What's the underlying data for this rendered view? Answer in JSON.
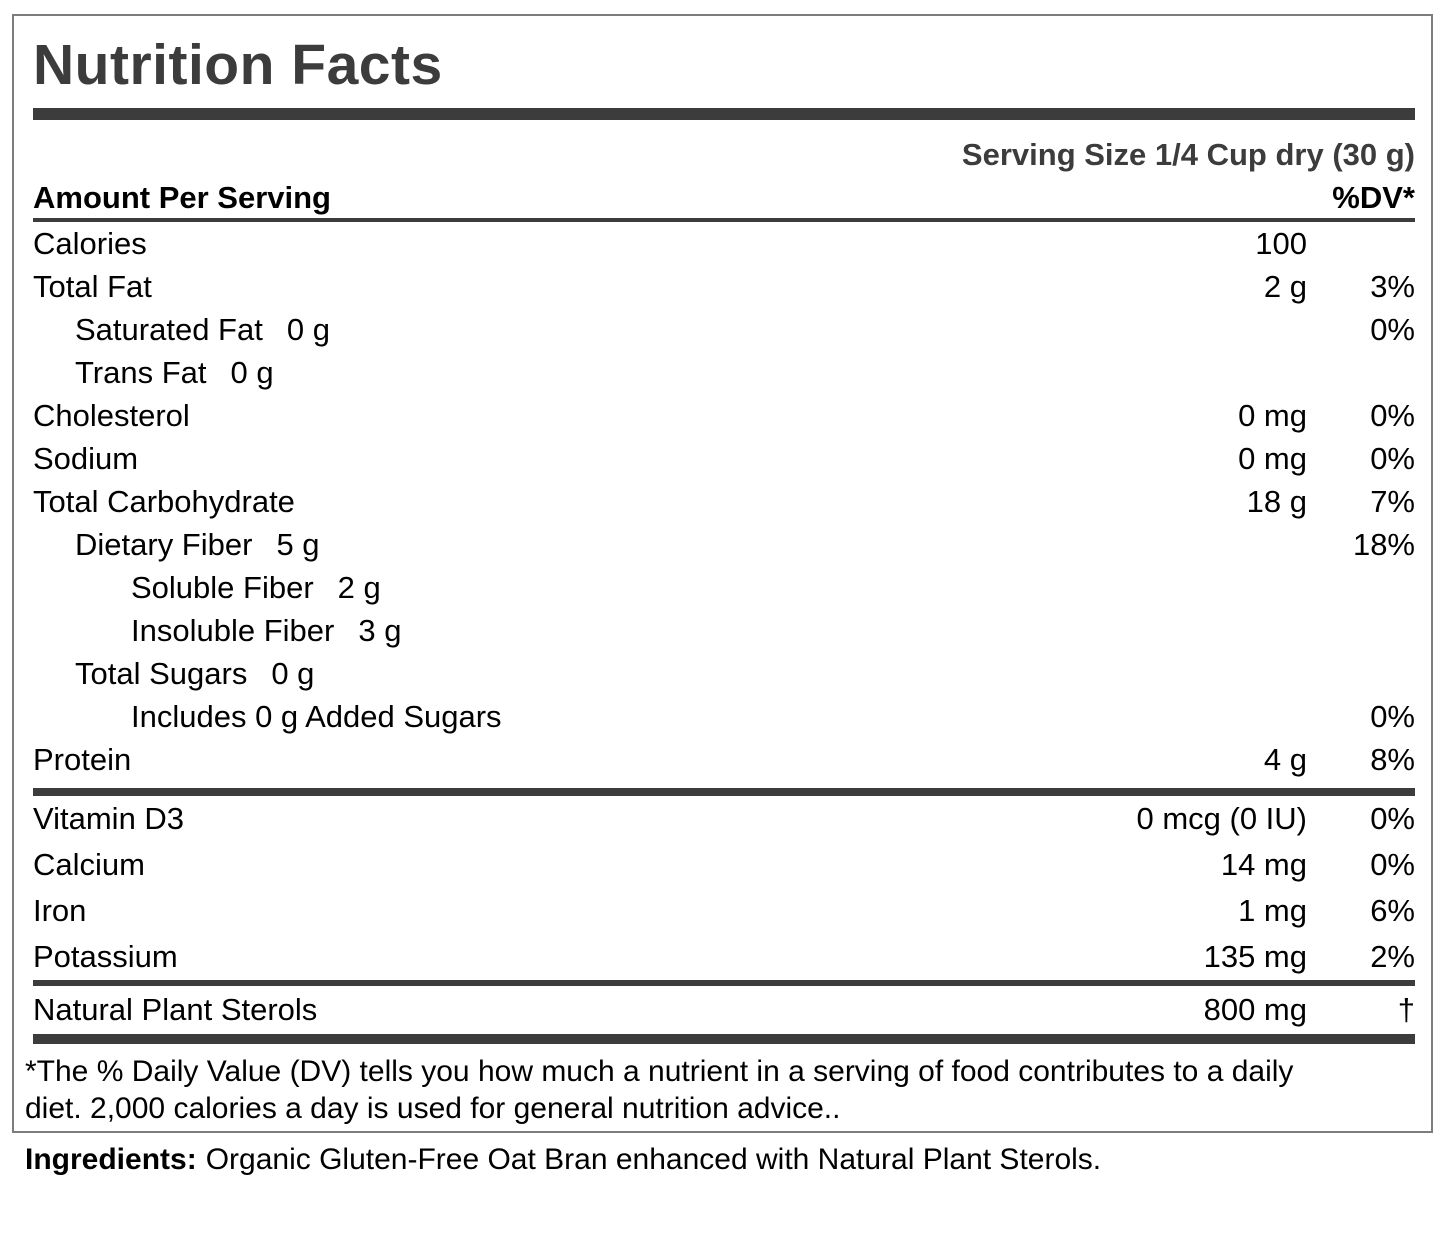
{
  "label": {
    "title": "Nutrition Facts",
    "serving_size": "Serving Size 1/4 Cup dry (30 g)",
    "header": {
      "amount_per_serving": "Amount Per Serving",
      "dv": "%DV*"
    },
    "rows": [
      {
        "name": "Calories",
        "inline": "",
        "amount": "100",
        "dv": ""
      },
      {
        "name": "Total Fat",
        "inline": "",
        "amount": "2 g",
        "dv": "3%"
      },
      {
        "name": "Saturated Fat",
        "inline": "0 g",
        "amount": "",
        "dv": "0%"
      },
      {
        "name": "Trans Fat",
        "inline": "0 g",
        "amount": "",
        "dv": ""
      },
      {
        "name": "Cholesterol",
        "inline": "",
        "amount": "0 mg",
        "dv": "0%"
      },
      {
        "name": "Sodium",
        "inline": "",
        "amount": "0 mg",
        "dv": "0%"
      },
      {
        "name": "Total Carbohydrate",
        "inline": "",
        "amount": "18 g",
        "dv": "7%"
      },
      {
        "name": "Dietary Fiber",
        "inline": "5 g",
        "amount": "",
        "dv": "18%"
      },
      {
        "name": "Soluble Fiber",
        "inline": "2 g",
        "amount": "",
        "dv": ""
      },
      {
        "name": "Insoluble Fiber",
        "inline": "3 g",
        "amount": "",
        "dv": ""
      },
      {
        "name": "Total Sugars",
        "inline": "0 g",
        "amount": "",
        "dv": ""
      },
      {
        "name": "Includes 0 g Added Sugars",
        "inline": "",
        "amount": "",
        "dv": "0%"
      },
      {
        "name": "Protein",
        "inline": "",
        "amount": "4 g",
        "dv": "8%"
      }
    ],
    "micronutrients": [
      {
        "name": "Vitamin D3",
        "amount": "0 mcg (0 IU)",
        "dv": "0%"
      },
      {
        "name": "Calcium",
        "amount": "14 mg",
        "dv": "0%"
      },
      {
        "name": "Iron",
        "amount": "1 mg",
        "dv": "6%"
      },
      {
        "name": "Potassium",
        "amount": "135 mg",
        "dv": "2%"
      }
    ],
    "sterols": {
      "name": "Natural Plant Sterols",
      "amount": "800 mg",
      "dv": "†"
    },
    "footnote": {
      "line1": "*The % Daily Value (DV) tells you how much a nutrient in a serving of food contributes to a daily",
      "line2": "diet. 2,000 calories a day is used for general nutrition advice.."
    },
    "ingredients": {
      "label": "Ingredients:",
      "text": "Organic Gluten-Free Oat Bran enhanced with Natural Plant Sterols."
    }
  },
  "colors": {
    "accent_dark_gray": "#3c3c3c",
    "text": "#000000",
    "border_gray": "#7d7d7d"
  }
}
